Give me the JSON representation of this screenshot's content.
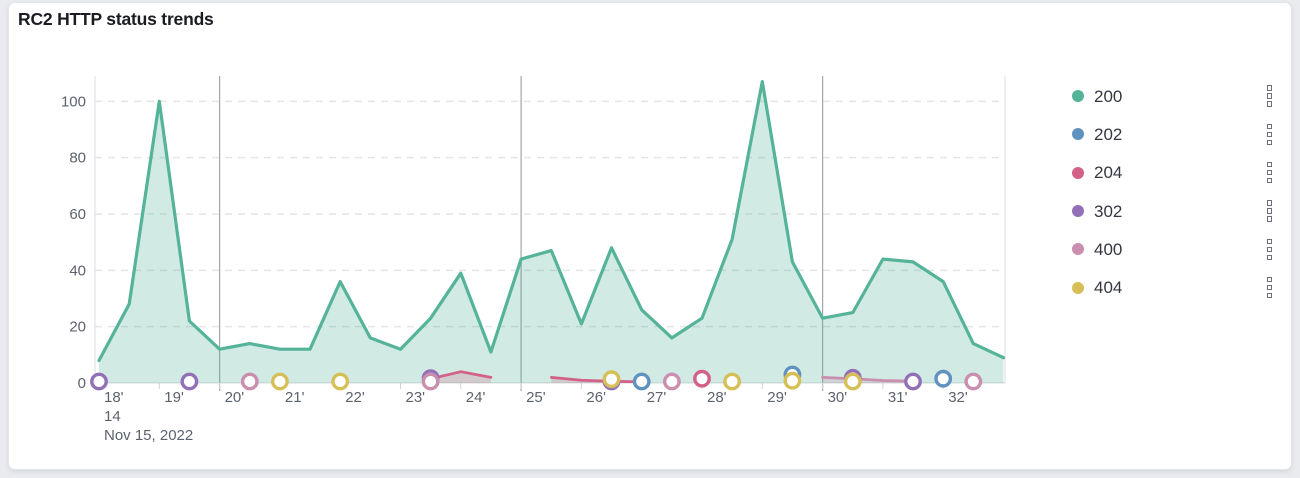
{
  "panel": {
    "title": "RC2 HTTP status trends"
  },
  "legend": {
    "items": [
      {
        "label": "200",
        "color": "#54B399"
      },
      {
        "label": "202",
        "color": "#6092C0"
      },
      {
        "label": "204",
        "color": "#D36086"
      },
      {
        "label": "302",
        "color": "#9170B8"
      },
      {
        "label": "400",
        "color": "#CA8EAE"
      },
      {
        "label": "404",
        "color": "#D6BF57"
      }
    ]
  },
  "chart_data": {
    "type": "area",
    "title": "RC2 HTTP status trends",
    "x_axis": {
      "tick_labels": [
        "18'",
        "19'",
        "20'",
        "21'",
        "22'",
        "23'",
        "24'",
        "25'",
        "26'",
        "27'",
        "28'",
        "29'",
        "30'",
        "31'",
        "32'"
      ],
      "hour_label": "14",
      "date_label": "Nov 15, 2022",
      "minutes_start": 18,
      "step_minutes": 0.5,
      "emphasized_ticks": [
        "20'",
        "25'",
        "30'"
      ]
    },
    "y_axis": {
      "ticks": [
        0,
        20,
        40,
        60,
        80,
        100
      ],
      "max": 109
    },
    "grid": {
      "horizontal_dashed": true
    },
    "legend_position": "right",
    "series": [
      {
        "name": "200",
        "color": "#54B399",
        "fill_opacity": 0.27,
        "values": [
          8,
          28,
          100,
          22,
          12,
          14,
          12,
          12,
          36,
          16,
          12,
          23,
          39,
          11,
          44,
          47,
          21,
          48,
          26,
          16,
          23,
          51,
          107,
          43,
          23,
          25,
          44,
          43,
          36,
          14,
          9
        ]
      },
      {
        "name": "202",
        "color": "#6092C0",
        "points": [
          [
            27,
            0
          ],
          [
            29.5,
            2.5
          ],
          [
            32,
            1
          ]
        ]
      },
      {
        "name": "204",
        "color": "#D36086",
        "fill_opacity": 0.22,
        "segments": [
          [
            [
              23.5,
              1.5
            ],
            [
              24,
              4
            ],
            [
              24.5,
              2
            ]
          ],
          [
            [
              25.5,
              2
            ],
            [
              26,
              1
            ],
            [
              26.5,
              0.6
            ],
            [
              27,
              0.4
            ]
          ]
        ],
        "points": [
          [
            28,
            1
          ]
        ]
      },
      {
        "name": "302",
        "color": "#9170B8",
        "points": [
          [
            18,
            0
          ],
          [
            19.5,
            0
          ],
          [
            23.5,
            1.2
          ],
          [
            26.5,
            0
          ],
          [
            30.5,
            1.3
          ],
          [
            31.5,
            0
          ]
        ]
      },
      {
        "name": "400",
        "color": "#CA8EAE",
        "fill_opacity": 0.25,
        "segments": [
          [
            [
              30,
              2
            ],
            [
              30.5,
              1.5
            ],
            [
              31,
              0.9
            ],
            [
              31.5,
              0.6
            ]
          ]
        ],
        "points": [
          [
            20.5,
            0
          ],
          [
            23.5,
            0
          ],
          [
            27.5,
            0
          ],
          [
            32.5,
            0
          ]
        ]
      },
      {
        "name": "404",
        "color": "#D6BF57",
        "points": [
          [
            21,
            0
          ],
          [
            22,
            0
          ],
          [
            26.5,
            0.8
          ],
          [
            28.5,
            0
          ],
          [
            29.5,
            0.3
          ],
          [
            30.5,
            0
          ]
        ]
      }
    ]
  }
}
